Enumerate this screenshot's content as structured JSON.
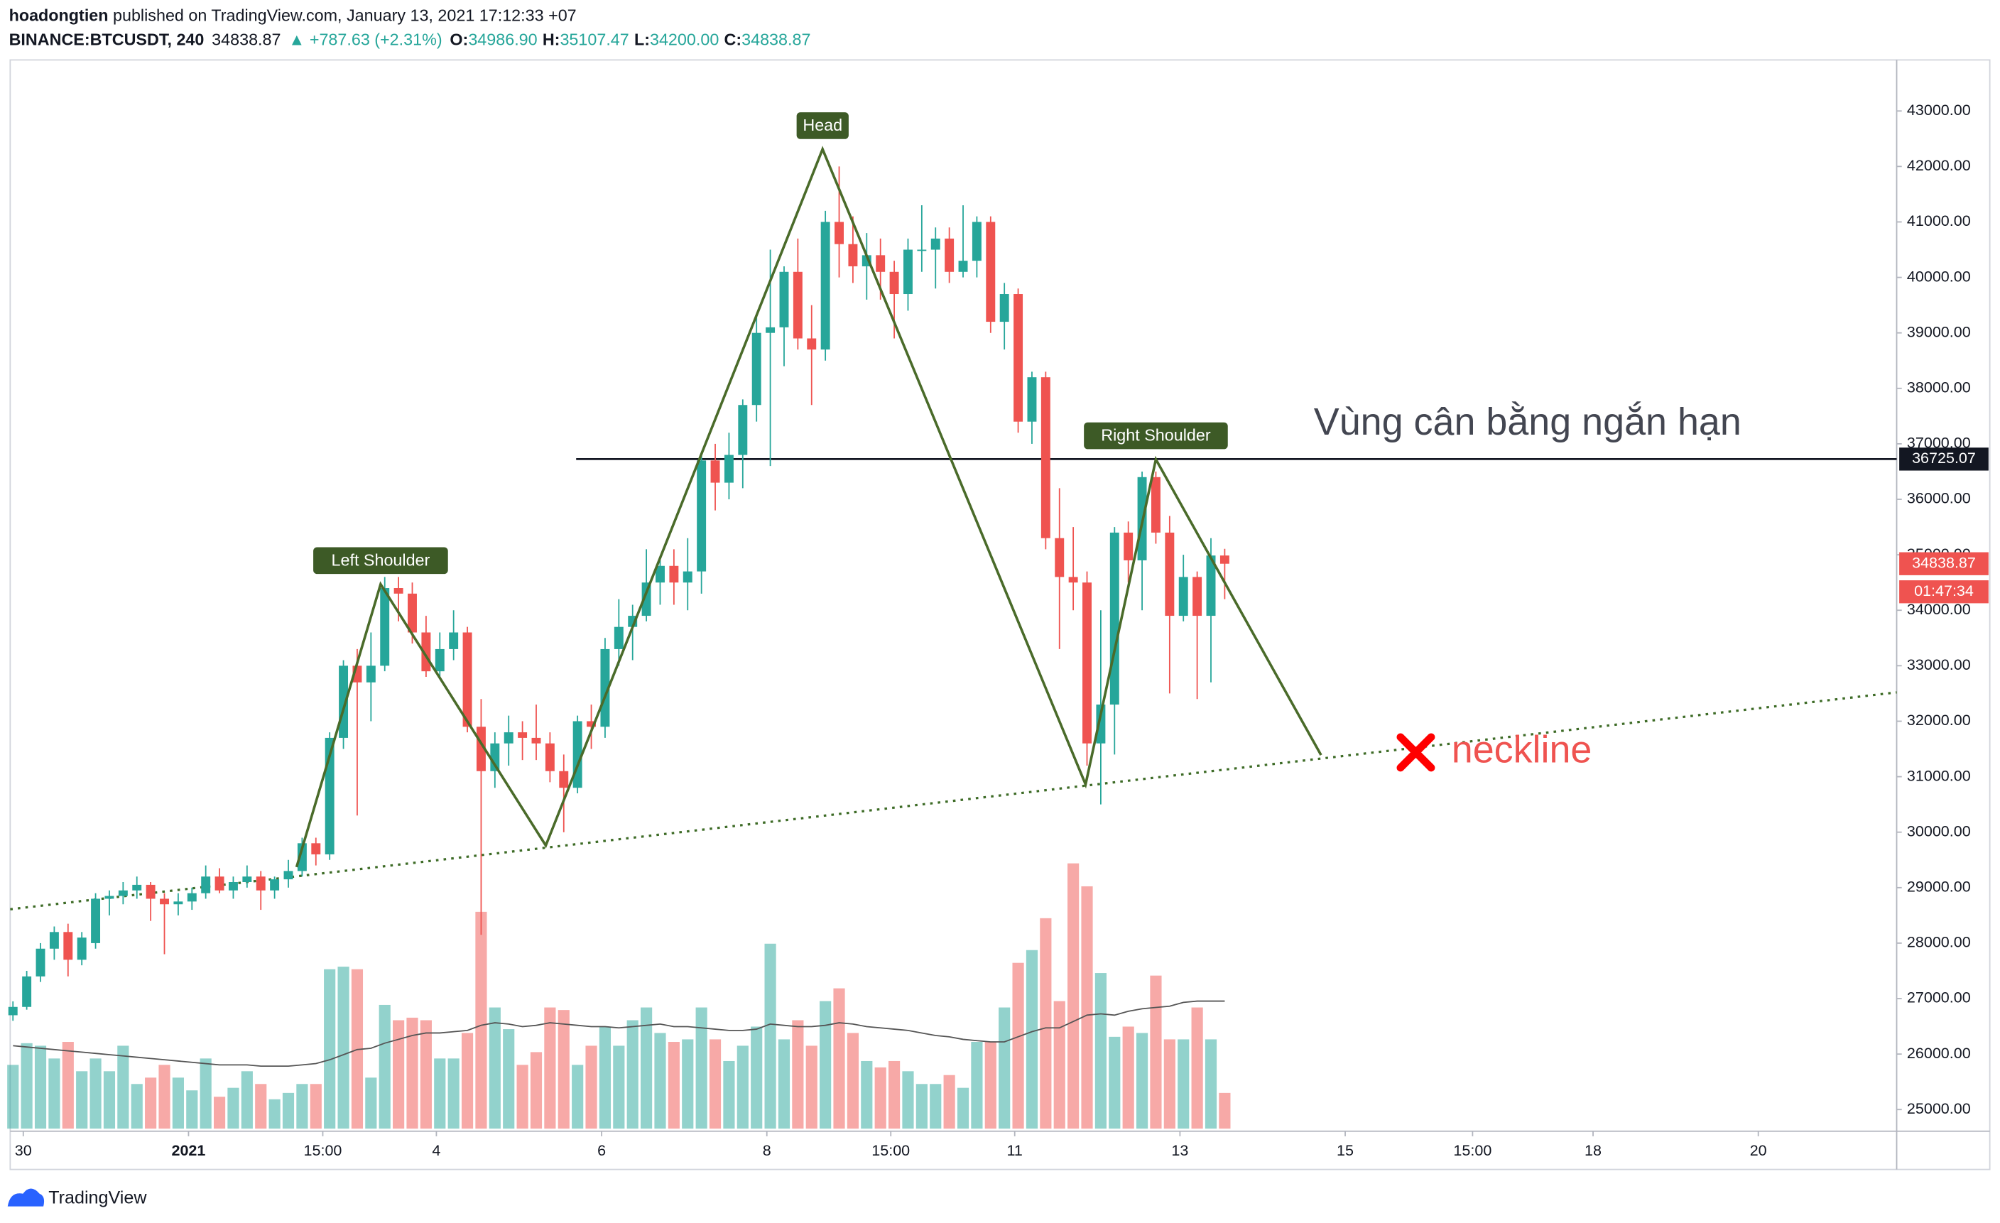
{
  "header": {
    "author": "hoadongtien",
    "published": " published on TradingView.com, January 13, 2021 17:12:33 +07",
    "symbol": "BINANCE:BTCUSDT, 240",
    "last": "34838.87",
    "change": "▲ +787.63 (+2.31%)",
    "o_label": "O:",
    "o": "34986.90",
    "h_label": "H:",
    "h": "35107.47",
    "l_label": "L:",
    "l": "34200.00",
    "c_label": "C:",
    "c": "34838.87"
  },
  "chart_data": {
    "type": "candlestick",
    "up_color": "#26a69a",
    "down_color": "#ef5350",
    "grid": false,
    "xlim": [
      -0.2,
      136.8
    ],
    "ylim": [
      24610,
      43920
    ],
    "xticks": [
      {
        "value": 0.75,
        "label": "30"
      },
      {
        "value": 12.75,
        "label": "2021"
      },
      {
        "value": 22.5,
        "label": "15:00"
      },
      {
        "value": 30.75,
        "label": "4"
      },
      {
        "value": 42.75,
        "label": "6"
      },
      {
        "value": 54.75,
        "label": "8"
      },
      {
        "value": 63.75,
        "label": "15:00"
      },
      {
        "value": 72.75,
        "label": "11"
      },
      {
        "value": 84.75,
        "label": "13"
      },
      {
        "value": 96.75,
        "label": "15"
      },
      {
        "value": 106,
        "label": "15:00"
      },
      {
        "value": 114.75,
        "label": "18"
      },
      {
        "value": 126.75,
        "label": "20"
      }
    ],
    "yticks": [
      {
        "value": 25000,
        "label": "25000.00"
      },
      {
        "value": 26000,
        "label": "26000.00"
      },
      {
        "value": 27000,
        "label": "27000.00"
      },
      {
        "value": 28000,
        "label": "28000.00"
      },
      {
        "value": 29000,
        "label": "29000.00"
      },
      {
        "value": 30000,
        "label": "30000.00"
      },
      {
        "value": 31000,
        "label": "31000.00"
      },
      {
        "value": 32000,
        "label": "32000.00"
      },
      {
        "value": 33000,
        "label": "33000.00"
      },
      {
        "value": 34000,
        "label": "34000.00"
      },
      {
        "value": 35000,
        "label": "35000.00"
      },
      {
        "value": 36000,
        "label": "36000.00"
      },
      {
        "value": 37000,
        "label": "37000.00"
      },
      {
        "value": 38000,
        "label": "38000.00"
      },
      {
        "value": 39000,
        "label": "39000.00"
      },
      {
        "value": 40000,
        "label": "40000.00"
      },
      {
        "value": 41000,
        "label": "41000.00"
      },
      {
        "value": 42000,
        "label": "42000.00"
      },
      {
        "value": 43000,
        "label": "43000.00"
      }
    ],
    "candles": [
      [
        26700,
        26950,
        26600,
        26850
      ],
      [
        26850,
        27500,
        26800,
        27400
      ],
      [
        27400,
        28000,
        27300,
        27900
      ],
      [
        27900,
        28300,
        27700,
        28200
      ],
      [
        28200,
        28350,
        27400,
        27700
      ],
      [
        27700,
        28200,
        27600,
        28100
      ],
      [
        28000,
        28900,
        27900,
        28800
      ],
      [
        28800,
        28950,
        28500,
        28850
      ],
      [
        28850,
        29100,
        28700,
        28950
      ],
      [
        28950,
        29200,
        28800,
        29050
      ],
      [
        29050,
        29100,
        28400,
        28800
      ],
      [
        28800,
        28900,
        27800,
        28700
      ],
      [
        28700,
        28900,
        28500,
        28750
      ],
      [
        28750,
        29000,
        28600,
        28900
      ],
      [
        28900,
        29400,
        28800,
        29200
      ],
      [
        29200,
        29350,
        28900,
        28950
      ],
      [
        28950,
        29200,
        28800,
        29100
      ],
      [
        29100,
        29400,
        29000,
        29200
      ],
      [
        29200,
        29300,
        28600,
        28950
      ],
      [
        28950,
        29200,
        28800,
        29150
      ],
      [
        29150,
        29500,
        29000,
        29300
      ],
      [
        29300,
        29900,
        29200,
        29800
      ],
      [
        29800,
        29900,
        29400,
        29600
      ],
      [
        29600,
        31800,
        29500,
        31700
      ],
      [
        31700,
        33100,
        31500,
        33000
      ],
      [
        33000,
        33300,
        30300,
        32700
      ],
      [
        32700,
        33600,
        32000,
        33000
      ],
      [
        33000,
        34600,
        32900,
        34400
      ],
      [
        34400,
        34600,
        33800,
        34300
      ],
      [
        34300,
        34500,
        33400,
        33600
      ],
      [
        33600,
        33900,
        32800,
        32900
      ],
      [
        32900,
        33600,
        32800,
        33300
      ],
      [
        33300,
        34000,
        33100,
        33600
      ],
      [
        33600,
        33700,
        31800,
        31900
      ],
      [
        31900,
        32400,
        28150,
        31100
      ],
      [
        31100,
        31800,
        30800,
        31600
      ],
      [
        31600,
        32100,
        31200,
        31800
      ],
      [
        31800,
        32000,
        31300,
        31700
      ],
      [
        31700,
        32300,
        31300,
        31600
      ],
      [
        31600,
        31800,
        30900,
        31100
      ],
      [
        31100,
        31400,
        30000,
        30800
      ],
      [
        30800,
        32100,
        30700,
        32000
      ],
      [
        32000,
        32300,
        31500,
        31900
      ],
      [
        31900,
        33500,
        31700,
        33300
      ],
      [
        33300,
        34200,
        33000,
        33700
      ],
      [
        33700,
        34100,
        33100,
        33900
      ],
      [
        33900,
        35100,
        33800,
        34500
      ],
      [
        34500,
        34900,
        34100,
        34800
      ],
      [
        34800,
        35100,
        34100,
        34500
      ],
      [
        34500,
        35300,
        34000,
        34700
      ],
      [
        34700,
        36800,
        34300,
        36700
      ],
      [
        36700,
        37000,
        35800,
        36300
      ],
      [
        36300,
        37200,
        36000,
        36800
      ],
      [
        36800,
        37800,
        36200,
        37700
      ],
      [
        37700,
        39300,
        37400,
        39000
      ],
      [
        39000,
        40500,
        36600,
        39100
      ],
      [
        39100,
        40200,
        38400,
        40100
      ],
      [
        40100,
        40700,
        38700,
        38900
      ],
      [
        38900,
        39500,
        37700,
        38700
      ],
      [
        38700,
        41200,
        38500,
        41000
      ],
      [
        41000,
        42000,
        40000,
        40600
      ],
      [
        40600,
        41100,
        39900,
        40200
      ],
      [
        40200,
        40800,
        39600,
        40400
      ],
      [
        40400,
        40700,
        39600,
        40100
      ],
      [
        40100,
        40300,
        38900,
        39700
      ],
      [
        39700,
        40700,
        39400,
        40500
      ],
      [
        40500,
        41300,
        40100,
        40500
      ],
      [
        40500,
        40900,
        39800,
        40700
      ],
      [
        40700,
        40900,
        39900,
        40100
      ],
      [
        40100,
        41300,
        40000,
        40300
      ],
      [
        40300,
        41100,
        40000,
        41000
      ],
      [
        41000,
        41100,
        39000,
        39200
      ],
      [
        39200,
        39900,
        38700,
        39700
      ],
      [
        39700,
        39800,
        37200,
        37400
      ],
      [
        37400,
        38300,
        37000,
        38200
      ],
      [
        38200,
        38300,
        35100,
        35300
      ],
      [
        35300,
        36200,
        33300,
        34600
      ],
      [
        34600,
        35500,
        34000,
        34500
      ],
      [
        34500,
        34700,
        31200,
        31600
      ],
      [
        31600,
        34000,
        30500,
        32300
      ],
      [
        32300,
        35500,
        31400,
        35400
      ],
      [
        35400,
        35600,
        34500,
        34900
      ],
      [
        34900,
        36500,
        34000,
        36400
      ],
      [
        36400,
        36500,
        35200,
        35400
      ],
      [
        35400,
        35700,
        32500,
        33900
      ],
      [
        33900,
        35000,
        33800,
        34600
      ],
      [
        34600,
        34700,
        32400,
        33900
      ],
      [
        33900,
        35300,
        32700,
        34986.9
      ],
      [
        34986.9,
        35107.47,
        34200,
        34838.87
      ]
    ],
    "volume_lim": [
      0,
      84
    ],
    "volume": [
      5,
      6.7,
      6.5,
      5.5,
      6.8,
      4.5,
      5.5,
      4.5,
      6.5,
      3.5,
      4,
      5,
      4,
      3,
      5.5,
      2.5,
      3.2,
      4.5,
      3.5,
      2.3,
      2.8,
      3.5,
      3.5,
      12.5,
      12.7,
      12.5,
      4,
      9.7,
      8.5,
      8.7,
      8.5,
      5.5,
      5.5,
      7.5,
      17,
      9.5,
      7.8,
      5,
      6,
      9.5,
      9.3,
      5,
      6.5,
      8,
      6.5,
      8.5,
      9.5,
      7.5,
      6.8,
      7,
      9.5,
      7,
      5.3,
      6.5,
      8,
      14.5,
      7,
      8.5,
      6.5,
      10,
      11,
      7.5,
      5.3,
      4.8,
      5.3,
      4.5,
      3.5,
      3.5,
      4.2,
      3.2,
      6.8,
      6.8,
      9.5,
      13,
      14,
      16.5,
      10,
      20.8,
      19,
      12.2,
      7.2,
      8,
      7.5,
      12,
      7,
      7,
      9.5,
      7,
      2.8
    ],
    "volume_ma": [
      6.5,
      6.4,
      6.3,
      6.2,
      6.1,
      6.0,
      5.9,
      5.8,
      5.7,
      5.6,
      5.5,
      5.4,
      5.3,
      5.2,
      5.1,
      5.0,
      5.0,
      5.0,
      4.9,
      4.9,
      4.9,
      5.0,
      5.1,
      5.4,
      5.8,
      6.2,
      6.3,
      6.7,
      7.0,
      7.3,
      7.5,
      7.5,
      7.6,
      7.7,
      8.1,
      8.3,
      8.2,
      8.0,
      8.1,
      8.3,
      8.2,
      8.1,
      8.0,
      8.0,
      7.9,
      8.0,
      8.1,
      8.2,
      8.0,
      8.0,
      7.9,
      7.8,
      7.7,
      7.7,
      7.8,
      8.2,
      8.1,
      8.0,
      8.0,
      8.1,
      8.3,
      8.2,
      8.0,
      7.9,
      7.8,
      7.7,
      7.5,
      7.3,
      7.2,
      7.0,
      6.9,
      6.8,
      6.8,
      7.2,
      7.6,
      7.9,
      7.9,
      8.4,
      8.9,
      9.0,
      8.9,
      9.2,
      9.4,
      9.5,
      9.6,
      9.9,
      10.0,
      10.0,
      10.0
    ],
    "pattern": [
      {
        "x": 20.6,
        "y": 29370
      },
      {
        "x": 26.7,
        "y": 34470,
        "label": "Left Shoulder"
      },
      {
        "x": 38.7,
        "y": 29760
      },
      {
        "x": 58.8,
        "y": 42310,
        "label": "Head"
      },
      {
        "x": 77.9,
        "y": 30860
      },
      {
        "x": 83.0,
        "y": 36720,
        "label": "Right Shoulder"
      },
      {
        "x": 95.0,
        "y": 31390
      }
    ],
    "neckline": {
      "x": [
        -0.2,
        136.8
      ],
      "y": [
        28610,
        32520
      ]
    },
    "level": {
      "x": 40.9,
      "value": 36725.07,
      "label": "36725.07"
    },
    "last_price": {
      "value": 34838.87,
      "label": "34838.87",
      "countdown": "01:47:34"
    },
    "annotations": {
      "zone": "Vùng cân bằng ngắn hạn",
      "neckline": "neckline"
    }
  },
  "footer": {
    "brand": "TradingView"
  }
}
